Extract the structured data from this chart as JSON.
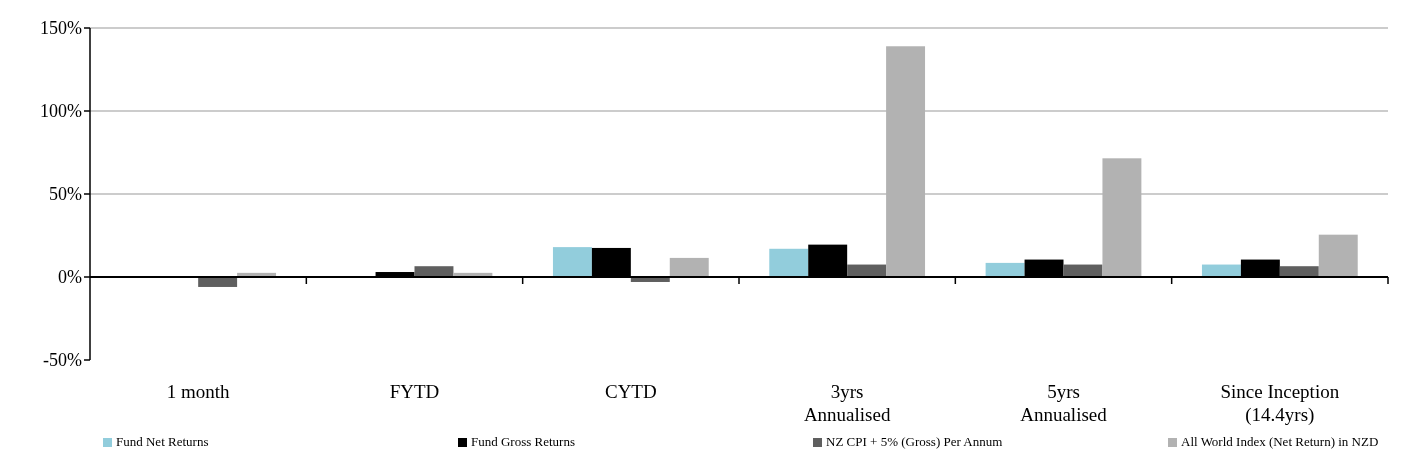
{
  "chart_data": {
    "type": "bar",
    "categories": [
      "1 month",
      "FYTD",
      "CYTD",
      "3yrs Annualised",
      "5yrs Annualised",
      "Since Inception (14.4yrs)"
    ],
    "series": [
      {
        "name": "Fund Net Returns",
        "color": "#92cddc",
        "values": [
          0,
          null,
          18,
          17,
          8.5,
          7.5
        ]
      },
      {
        "name": "Fund Gross Returns",
        "color": "#000000",
        "values": [
          0.5,
          3,
          17.5,
          19.5,
          10.5,
          10.5
        ]
      },
      {
        "name": "NZ CPI + 5% (Gross) Per Annum",
        "color": "#5f5f5f",
        "values": [
          -6,
          6.5,
          -3,
          7.5,
          7.5,
          6.5
        ]
      },
      {
        "name": "All World Index (Net Return) in NZD",
        "color": "#b2b2b2",
        "values": [
          2.5,
          2.5,
          11.5,
          139,
          71.5,
          25.5
        ]
      }
    ],
    "ylim": [
      -50,
      150
    ],
    "yticks": [
      {
        "value": -50,
        "label": "-50%"
      },
      {
        "value": 0,
        "label": "0%"
      },
      {
        "value": 50,
        "label": "50%"
      },
      {
        "value": 100,
        "label": "100%"
      },
      {
        "value": 150,
        "label": "150%"
      }
    ],
    "grid": "y",
    "legend": "bottom"
  }
}
